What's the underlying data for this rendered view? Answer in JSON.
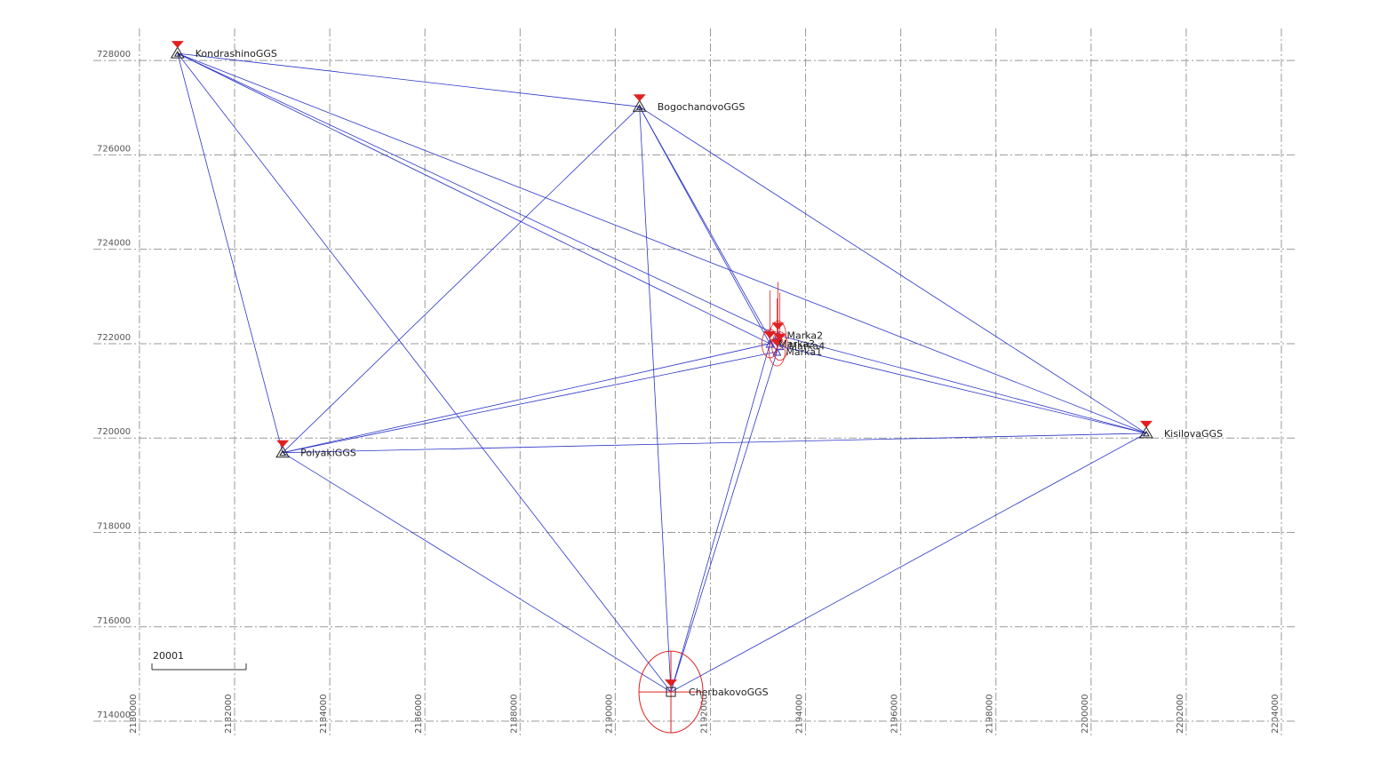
{
  "chart_data": {
    "type": "network",
    "xlim": [
      2179030,
      2204280
    ],
    "ylim": [
      713850,
      728680
    ],
    "xticks": [
      2180000,
      2182000,
      2184000,
      2186000,
      2188000,
      2190000,
      2192000,
      2194000,
      2196000,
      2198000,
      2200000,
      2202000,
      2204000
    ],
    "yticks": [
      714000,
      716000,
      718000,
      720000,
      722000,
      724000,
      726000,
      728000
    ],
    "grid": true,
    "scale_label": "20001",
    "color": "#2b35c8",
    "points": [
      {
        "name": "KondrashinoGGS",
        "x": 2180800,
        "y": 728150
      },
      {
        "name": "BogochanovoGGS",
        "x": 2190510,
        "y": 727020
      },
      {
        "name": "PolyakiGGS",
        "x": 2183010,
        "y": 719690
      },
      {
        "name": "KisilovaGGS",
        "x": 2201160,
        "y": 720100
      },
      {
        "name": "CherbakovoGGS",
        "x": 2191170,
        "y": 714620
      },
      {
        "name": "Marka2",
        "x": 2193420,
        "y": 722180
      },
      {
        "name": "Marka4",
        "x": 2193460,
        "y": 721950
      },
      {
        "name": "Marka1",
        "x": 2193400,
        "y": 721830
      },
      {
        "name": "Marka3",
        "x": 2193250,
        "y": 722000
      }
    ],
    "edges": [
      [
        "KondrashinoGGS",
        "BogochanovoGGS"
      ],
      [
        "KondrashinoGGS",
        "PolyakiGGS"
      ],
      [
        "KondrashinoGGS",
        "CherbakovoGGS"
      ],
      [
        "KondrashinoGGS",
        "KisilovaGGS"
      ],
      [
        "KondrashinoGGS",
        "Marka3"
      ],
      [
        "KondrashinoGGS",
        "Marka2"
      ],
      [
        "BogochanovoGGS",
        "PolyakiGGS"
      ],
      [
        "BogochanovoGGS",
        "CherbakovoGGS"
      ],
      [
        "BogochanovoGGS",
        "KisilovaGGS"
      ],
      [
        "BogochanovoGGS",
        "Marka3"
      ],
      [
        "BogochanovoGGS",
        "Marka1"
      ],
      [
        "PolyakiGGS",
        "Marka3"
      ],
      [
        "PolyakiGGS",
        "Marka1"
      ],
      [
        "PolyakiGGS",
        "KisilovaGGS"
      ],
      [
        "PolyakiGGS",
        "CherbakovoGGS"
      ],
      [
        "CherbakovoGGS",
        "KisilovaGGS"
      ],
      [
        "CherbakovoGGS",
        "Marka3"
      ],
      [
        "CherbakovoGGS",
        "Marka1"
      ],
      [
        "KisilovaGGS",
        "Marka4"
      ],
      [
        "KisilovaGGS",
        "Marka2"
      ]
    ]
  }
}
